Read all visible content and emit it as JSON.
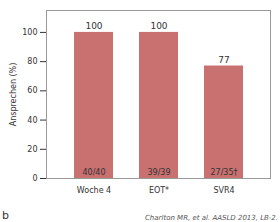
{
  "chart_data": {
    "type": "bar",
    "categories": [
      "Woche 4",
      "EOT*",
      "SVR4"
    ],
    "values": [
      100,
      100,
      77
    ],
    "color": "#c97070",
    "ylabel": "Ansprechen (%)",
    "ylim": [
      0,
      115
    ],
    "yticks": [
      0,
      20,
      40,
      60,
      80,
      100
    ],
    "data_labels": true,
    "annotations": [
      {
        "category": "Woche 4",
        "text": "40/40"
      },
      {
        "category": "EOT*",
        "text": "39/39"
      },
      {
        "category": "SVR4",
        "text": "27/35†"
      }
    ],
    "caption": "Charlton MR, et al. AASLD 2013, LB-2.",
    "panel_label": "b"
  }
}
